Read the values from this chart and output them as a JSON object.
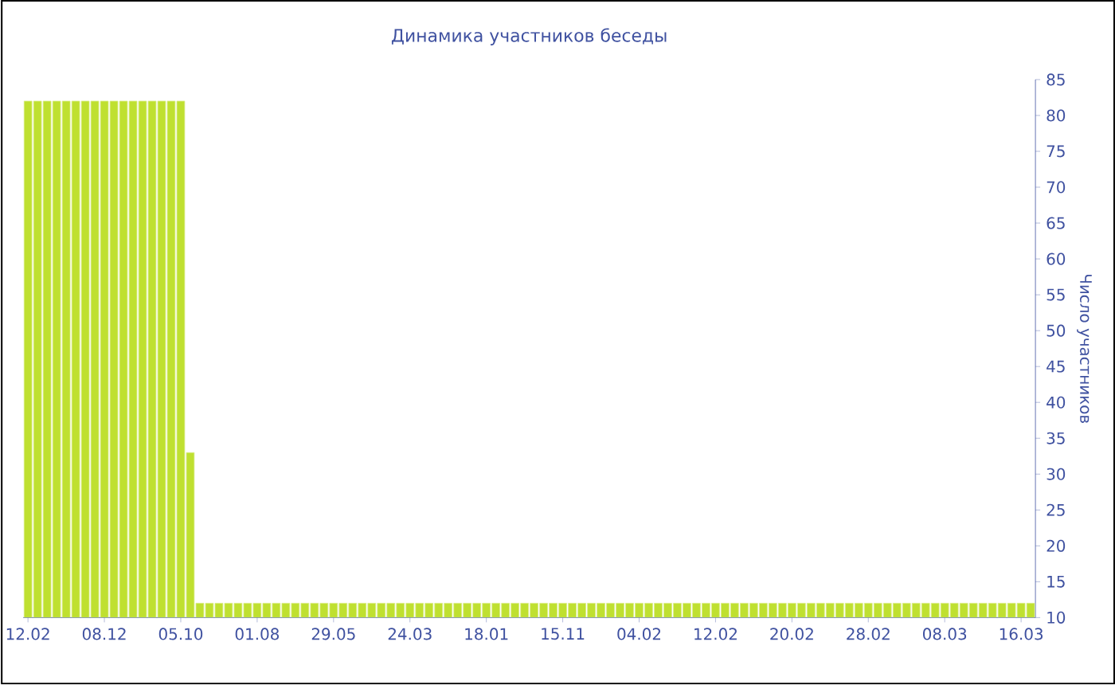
{
  "chart_data": {
    "type": "bar",
    "title": "Динамика участников беседы",
    "ylabel": "Число участников",
    "categories": [
      "12.02",
      null,
      null,
      null,
      null,
      null,
      null,
      null,
      "08.12",
      null,
      null,
      null,
      null,
      null,
      null,
      null,
      "05.10",
      null,
      null,
      null,
      null,
      null,
      null,
      null,
      "01.08",
      null,
      null,
      null,
      null,
      null,
      null,
      null,
      "29.05",
      null,
      null,
      null,
      null,
      null,
      null,
      null,
      "24.03",
      null,
      null,
      null,
      null,
      null,
      null,
      null,
      "18.01",
      null,
      null,
      null,
      null,
      null,
      null,
      null,
      "15.11",
      null,
      null,
      null,
      null,
      null,
      null,
      null,
      "04.02",
      null,
      null,
      null,
      null,
      null,
      null,
      null,
      "12.02",
      null,
      null,
      null,
      null,
      null,
      null,
      null,
      "20.02",
      null,
      null,
      null,
      null,
      null,
      null,
      null,
      "28.02",
      null,
      null,
      null,
      null,
      null,
      null,
      null,
      "08.03",
      null,
      null,
      null,
      null,
      null,
      null,
      null,
      "16.03",
      null
    ],
    "values": [
      82,
      82,
      82,
      82,
      82,
      82,
      82,
      82,
      82,
      82,
      82,
      82,
      82,
      82,
      82,
      82,
      82,
      33,
      12,
      12,
      12,
      12,
      12,
      12,
      12,
      12,
      12,
      12,
      12,
      12,
      12,
      12,
      12,
      12,
      12,
      12,
      12,
      12,
      12,
      12,
      12,
      12,
      12,
      12,
      12,
      12,
      12,
      12,
      12,
      12,
      12,
      12,
      12,
      12,
      12,
      12,
      12,
      12,
      12,
      12,
      12,
      12,
      12,
      12,
      12,
      12,
      12,
      12,
      12,
      12,
      12,
      12,
      12,
      12,
      12,
      12,
      12,
      12,
      12,
      12,
      12,
      12,
      12,
      12,
      12,
      12,
      12,
      12,
      12,
      12,
      12,
      12,
      12,
      12,
      12,
      12,
      12,
      12,
      12,
      12,
      12,
      12,
      12,
      12,
      12,
      12
    ],
    "color": "#bfe030",
    "ylim": [
      10,
      85
    ],
    "yticks": [
      10,
      15,
      20,
      25,
      30,
      35,
      40,
      45,
      50,
      55,
      60,
      65,
      70,
      75,
      80,
      85
    ]
  }
}
